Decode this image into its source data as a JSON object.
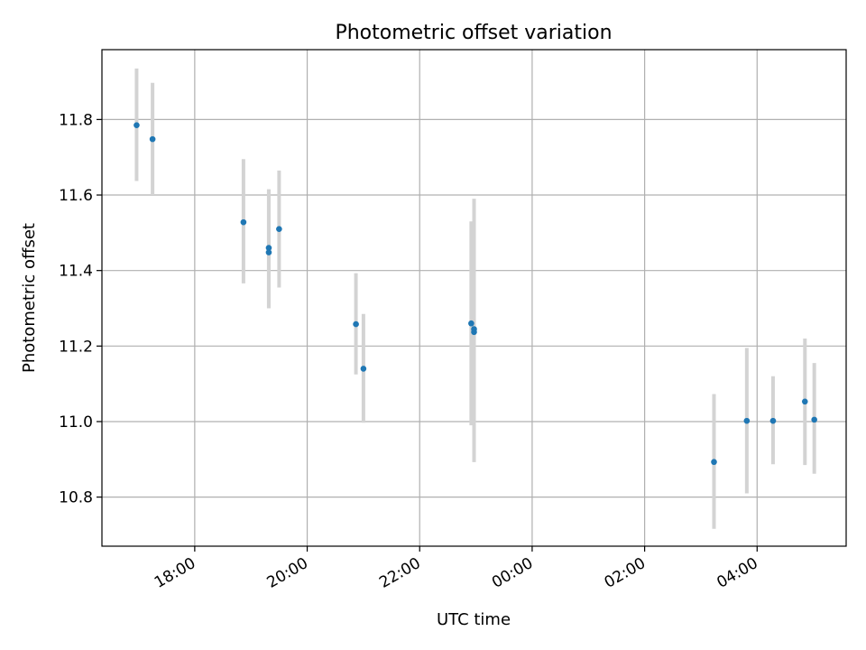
{
  "chart_data": {
    "type": "scatter",
    "title": "Photometric offset variation",
    "xlabel": "UTC time",
    "ylabel": "Photometric offset",
    "grid": true,
    "ylim": [
      10.67,
      11.985
    ],
    "xlim": [
      "16:21",
      "05:35"
    ],
    "x_ticks": [
      "18:00",
      "20:00",
      "22:00",
      "00:00",
      "02:00",
      "04:00"
    ],
    "y_ticks": [
      "10.8",
      "11.0",
      "11.2",
      "11.4",
      "11.6",
      "11.8"
    ],
    "point_color": "#1f77b4",
    "errorbar_color": "#d3d3d3",
    "points": [
      {
        "x": "16:58",
        "y": 11.785,
        "y_low": 11.637,
        "y_high": 11.935
      },
      {
        "x": "17:15",
        "y": 11.748,
        "y_low": 11.6,
        "y_high": 11.897
      },
      {
        "x": "18:52",
        "y": 11.528,
        "y_low": 11.366,
        "y_high": 11.695
      },
      {
        "x": "19:19",
        "y": 11.46,
        "y_low": 11.3,
        "y_high": 11.615
      },
      {
        "x": "19:19",
        "y": 11.448,
        "y_low": 11.3,
        "y_high": 11.615
      },
      {
        "x": "19:30",
        "y": 11.51,
        "y_low": 11.355,
        "y_high": 11.665
      },
      {
        "x": "20:52",
        "y": 11.258,
        "y_low": 11.125,
        "y_high": 11.393
      },
      {
        "x": "21:00",
        "y": 11.14,
        "y_low": 10.997,
        "y_high": 11.285
      },
      {
        "x": "22:55",
        "y": 11.26,
        "y_low": 10.99,
        "y_high": 11.53
      },
      {
        "x": "22:58",
        "y": 11.245,
        "y_low": 10.893,
        "y_high": 11.59
      },
      {
        "x": "22:58",
        "y": 11.237,
        "y_low": 10.893,
        "y_high": 11.59
      },
      {
        "x": "03:14",
        "y": 10.893,
        "y_low": 10.716,
        "y_high": 11.073
      },
      {
        "x": "03:49",
        "y": 11.002,
        "y_low": 10.81,
        "y_high": 11.195
      },
      {
        "x": "04:17",
        "y": 11.002,
        "y_low": 10.887,
        "y_high": 11.12
      },
      {
        "x": "04:51",
        "y": 11.053,
        "y_low": 10.885,
        "y_high": 11.22
      },
      {
        "x": "05:01",
        "y": 11.005,
        "y_low": 10.862,
        "y_high": 11.155
      }
    ]
  }
}
